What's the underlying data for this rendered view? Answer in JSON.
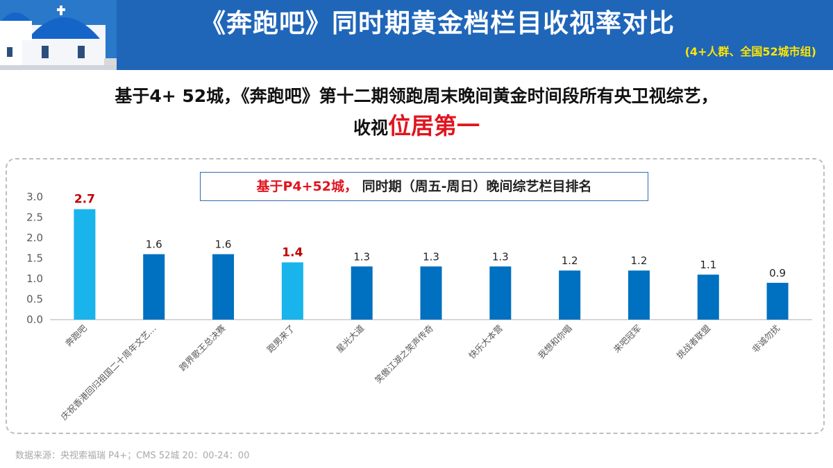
{
  "header": {
    "title": "《奔跑吧》同时期黄金档栏目收视率对比",
    "subtitle": "(4+人群、全国52城市组)"
  },
  "headline": {
    "line1": "基于4+ 52城，《奔跑吧》第十二期领跑周末晚间黄金时间段所有央卫视综艺，",
    "line2_plain": "收视",
    "line2_emphasis": "位居第一"
  },
  "legend": {
    "red_text": "基于P4+52城，",
    "dark_text": " 同时期（周五-周日）晚间综艺栏目排名"
  },
  "chart_data": {
    "type": "bar",
    "categories": [
      "奔跑吧",
      "庆祝香港回归祖国二十周年文艺…",
      "跨界歌王总决赛",
      "跑男来了",
      "星光大道",
      "笑傲江湖之笑声传奇",
      "快乐大本营",
      "我想和你唱",
      "来吧冠军",
      "挑战者联盟",
      "非诚勿扰"
    ],
    "values": [
      2.7,
      1.6,
      1.6,
      1.4,
      1.3,
      1.3,
      1.3,
      1.2,
      1.2,
      1.1,
      0.9
    ],
    "value_labels": [
      "2.7",
      "1.6",
      "1.6",
      "1.4",
      "1.3",
      "1.3",
      "1.3",
      "1.2",
      "1.2",
      "1.1",
      "0.9"
    ],
    "highlighted": [
      true,
      false,
      false,
      true,
      false,
      false,
      false,
      false,
      false,
      false,
      false
    ],
    "yticks": [
      "0.0",
      "0.5",
      "1.0",
      "1.5",
      "2.0",
      "2.5",
      "3.0"
    ],
    "ylim": [
      0,
      3.0
    ],
    "colors": {
      "highlight_bar": "#19b4ec",
      "normal_bar": "#0070c0",
      "highlight_label": "#c00000",
      "normal_label": "#222222",
      "axis": "#bfbfbf",
      "tick_text": "#595959"
    }
  },
  "source": "数据来源：央视索福瑞 P4+；CMS 52城   20：00-24：00"
}
